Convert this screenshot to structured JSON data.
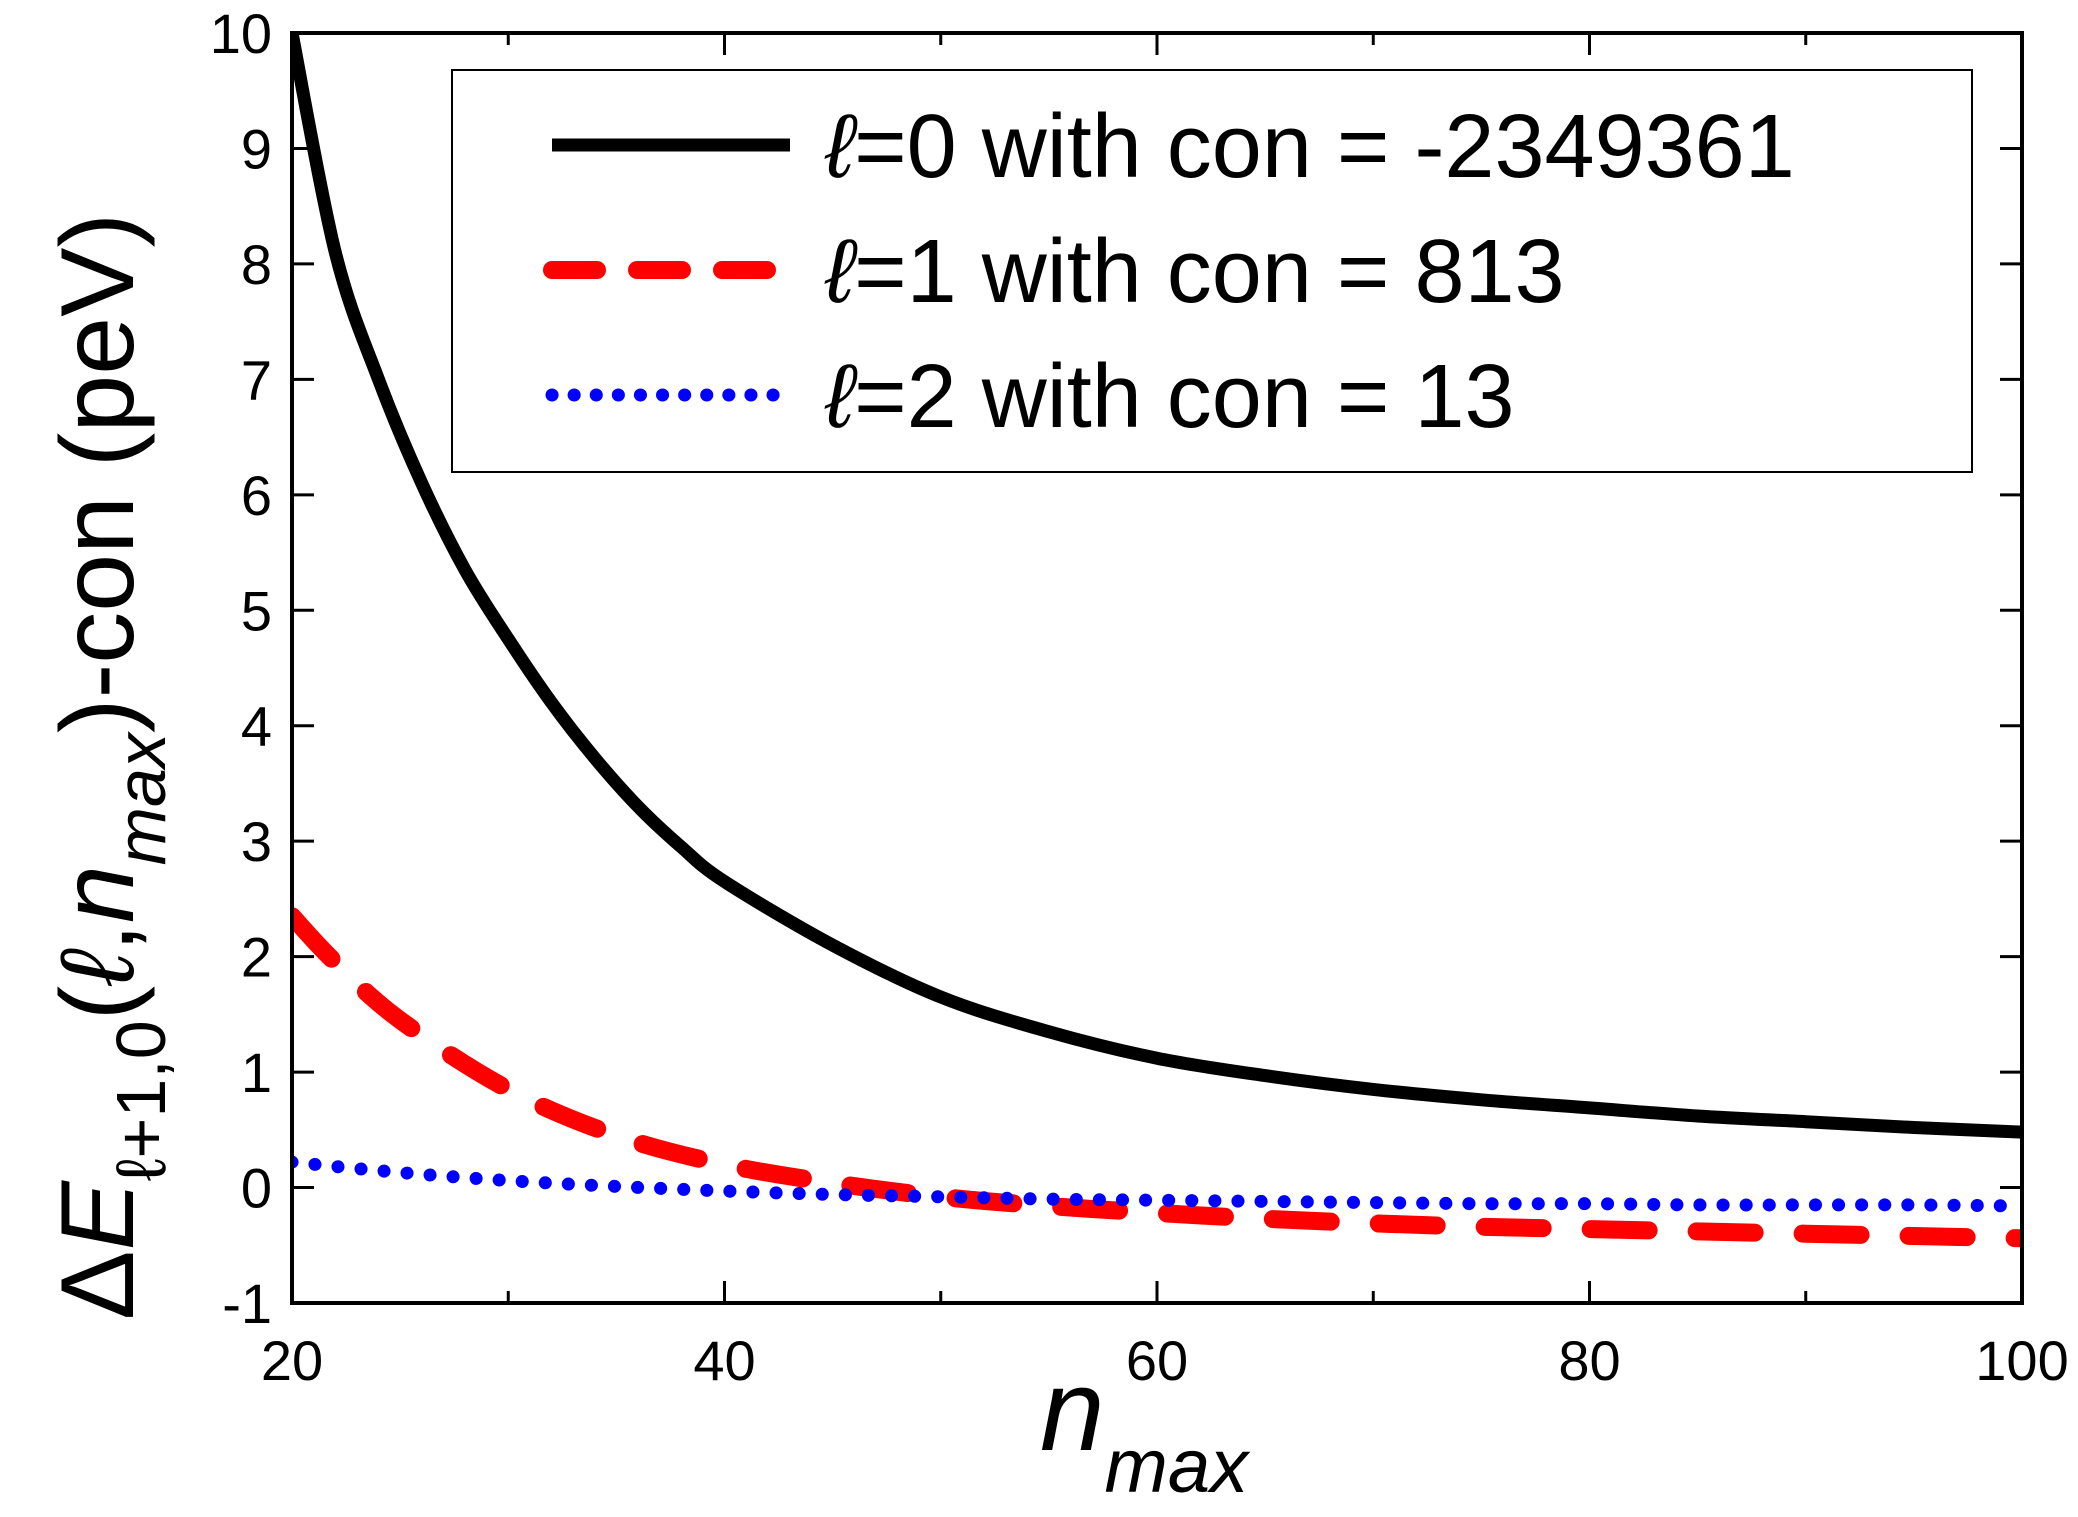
{
  "chart_data": {
    "type": "line",
    "title": "",
    "xlabel": {
      "main": "n",
      "sub": "max"
    },
    "ylabel": {
      "delta": "Δ",
      "E": "E",
      "sub": "ℓ+1,0",
      "open": "(",
      "ell": "ℓ",
      "comma": ",",
      "n": "n",
      "nsub": "max",
      "tail": ")-con (peV)"
    },
    "xlim": [
      20,
      100
    ],
    "ylim": [
      -1,
      10
    ],
    "xticks": [
      20,
      40,
      60,
      80,
      100
    ],
    "yticks": [
      -1,
      0,
      1,
      2,
      3,
      4,
      5,
      6,
      7,
      8,
      9,
      10
    ],
    "grid": false,
    "legend_position": "top-right",
    "series": [
      {
        "name": "ℓ=0 with con = -2349361",
        "legend_symbol": "ℓ",
        "legend_rest": "=0 with con = -2349361",
        "color": "#000000",
        "style": "solid",
        "x": [
          20,
          22,
          24,
          26,
          28,
          30,
          32,
          34,
          36,
          38,
          40,
          45,
          50,
          55,
          60,
          65,
          70,
          75,
          80,
          85,
          90,
          95,
          100
        ],
        "y": [
          10.0,
          8.1,
          7.0,
          6.1,
          5.35,
          4.75,
          4.2,
          3.72,
          3.3,
          2.95,
          2.65,
          2.1,
          1.65,
          1.35,
          1.12,
          0.97,
          0.85,
          0.76,
          0.69,
          0.62,
          0.57,
          0.52,
          0.48
        ]
      },
      {
        "name": "ℓ=1 with con = 813",
        "legend_symbol": "ℓ",
        "legend_rest": "=1 with con = 813",
        "color": "#ff0000",
        "style": "dashed",
        "x": [
          20,
          22,
          25,
          30,
          35,
          40,
          45,
          50,
          55,
          60,
          65,
          70,
          75,
          80,
          85,
          90,
          95,
          100
        ],
        "y": [
          2.35,
          1.95,
          1.45,
          0.85,
          0.45,
          0.2,
          0.04,
          -0.08,
          -0.16,
          -0.22,
          -0.27,
          -0.31,
          -0.34,
          -0.36,
          -0.38,
          -0.4,
          -0.42,
          -0.44
        ]
      },
      {
        "name": "ℓ=2 with con = 13",
        "legend_symbol": "ℓ",
        "legend_rest": "=2 with con = 13",
        "color": "#0000ff",
        "style": "dotted",
        "x": [
          20,
          25,
          30,
          35,
          40,
          45,
          50,
          55,
          60,
          65,
          70,
          75,
          80,
          85,
          90,
          95,
          100
        ],
        "y": [
          0.22,
          0.13,
          0.06,
          0.01,
          -0.03,
          -0.06,
          -0.08,
          -0.1,
          -0.11,
          -0.12,
          -0.13,
          -0.14,
          -0.14,
          -0.15,
          -0.15,
          -0.15,
          -0.16
        ]
      }
    ]
  }
}
